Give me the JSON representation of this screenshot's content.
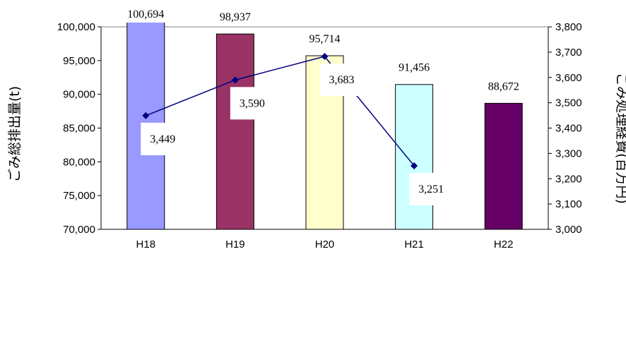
{
  "chart_data": {
    "type": "bar",
    "categories": [
      "H18",
      "H19",
      "H20",
      "H21",
      "H22"
    ],
    "series": [
      {
        "type": "bar",
        "axis": "left",
        "values": [
          100694,
          98937,
          95714,
          91456,
          88672
        ],
        "labels": [
          "100,694",
          "98,937",
          "95,714",
          "91,456",
          "88,672"
        ],
        "colors": [
          "#9999ff",
          "#993366",
          "#ffffcc",
          "#ccffff",
          "#660066"
        ]
      },
      {
        "type": "line",
        "axis": "right",
        "values": [
          3449,
          3590,
          3683,
          3251,
          null
        ],
        "labels": [
          "3,449",
          "3,590",
          "3,683",
          "3,251",
          ""
        ],
        "color": "#000080"
      }
    ],
    "ylabel": "ごみ総排出量(t)",
    "y2label": "ごみ処理経費(百万円)",
    "ylim": [
      70000,
      100000
    ],
    "y2lim": [
      3000,
      3800
    ],
    "yticks": [
      "70,000",
      "75,000",
      "80,000",
      "85,000",
      "90,000",
      "95,000",
      "100,000"
    ],
    "y2ticks": [
      "3,000",
      "3,100",
      "3,200",
      "3,300",
      "3,400",
      "3,500",
      "3,600",
      "3,700",
      "3,800"
    ],
    "grid": false,
    "legend": "none"
  }
}
